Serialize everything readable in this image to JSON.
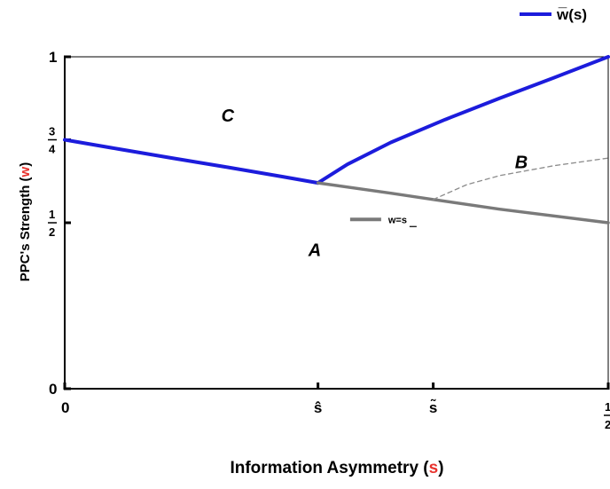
{
  "chart_data": {
    "type": "line",
    "xlabel": {
      "prefix": "Information Asymmetry (",
      "var": "s",
      "suffix": ")"
    },
    "ylabel": {
      "prefix": "PPC's Strength (",
      "var": "w",
      "suffix": ")"
    },
    "xlim": [
      0,
      0.5
    ],
    "ylim": [
      0,
      1
    ],
    "grid": false,
    "legend_position": "top-right",
    "x_ticks": [
      {
        "value": 0,
        "label": "0"
      },
      {
        "value": 0.233,
        "label": "ŝ"
      },
      {
        "value": 0.339,
        "label": "s̃"
      },
      {
        "value": 0.5,
        "label_num": "1",
        "label_den": "2"
      }
    ],
    "y_ticks": [
      {
        "value": 0,
        "label": "0"
      },
      {
        "value": 0.5,
        "label_num": "1",
        "label_den": "2"
      },
      {
        "value": 0.75,
        "label_num": "3",
        "label_den": "4"
      },
      {
        "value": 1,
        "label": "1"
      }
    ],
    "legend": [
      {
        "label": "w̅(s)",
        "color": "#1c1cdc",
        "style": "solid"
      }
    ],
    "series": [
      {
        "role": "legend",
        "color": "#1c1cdc",
        "style": "solid",
        "x": [
          0,
          0.05,
          0.1,
          0.15,
          0.2,
          0.233
        ],
        "y": [
          0.75,
          0.722,
          0.694,
          0.667,
          0.639,
          0.62
        ]
      },
      {
        "role": "legend",
        "color": "#1c1cdc",
        "style": "solid",
        "x": [
          0.233,
          0.26,
          0.3,
          0.35,
          0.4,
          0.45,
          0.5
        ],
        "y": [
          0.62,
          0.676,
          0.742,
          0.811,
          0.875,
          0.937,
          1.0
        ]
      },
      {
        "name": "w=s",
        "color": "#7a7a7a",
        "style": "solid",
        "x": [
          0.233,
          0.3,
          0.339,
          0.4,
          0.5
        ],
        "y": [
          0.62,
          0.589,
          0.57,
          0.541,
          0.5
        ]
      },
      {
        "color": "#8c8c8c",
        "style": "dashed",
        "x": [
          0.339,
          0.37,
          0.4,
          0.45,
          0.5
        ],
        "y": [
          0.57,
          0.615,
          0.642,
          0.672,
          0.695
        ]
      }
    ],
    "annotations": [
      {
        "text": "A",
        "x": 0.23,
        "y": 0.4
      },
      {
        "text": "B",
        "x": 0.42,
        "y": 0.665
      },
      {
        "text": "C",
        "x": 0.15,
        "y": 0.805
      }
    ],
    "inline_label": {
      "text": "w=s",
      "x": 0.265,
      "y": 0.51
    }
  }
}
